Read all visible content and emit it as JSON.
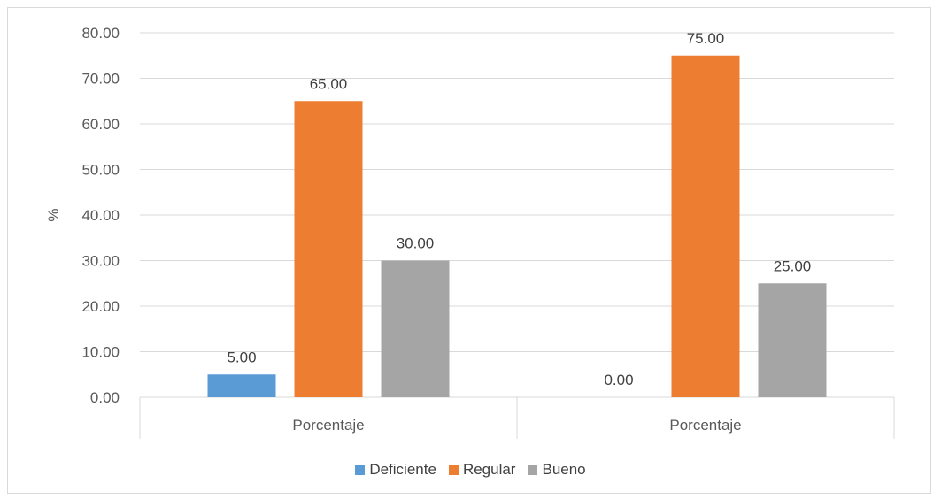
{
  "chart_data": {
    "type": "bar",
    "categories": [
      "Porcentaje",
      "Porcentaje"
    ],
    "series": [
      {
        "name": "Deficiente",
        "color": "#5b9bd5",
        "values": [
          5.0,
          0.0
        ]
      },
      {
        "name": "Regular",
        "color": "#ed7d31",
        "values": [
          65.0,
          75.0
        ]
      },
      {
        "name": "Bueno",
        "color": "#a5a5a5",
        "values": [
          30.0,
          25.0
        ]
      }
    ],
    "value_labels": [
      [
        "5.00",
        "0.00"
      ],
      [
        "65.00",
        "75.00"
      ],
      [
        "30.00",
        "25.00"
      ]
    ],
    "ylabel": "%",
    "ylim": [
      0,
      80
    ],
    "yticks": [
      "0.00",
      "10.00",
      "20.00",
      "30.00",
      "40.00",
      "50.00",
      "60.00",
      "70.00",
      "80.00"
    ],
    "grid": true,
    "legend_position": "bottom"
  }
}
